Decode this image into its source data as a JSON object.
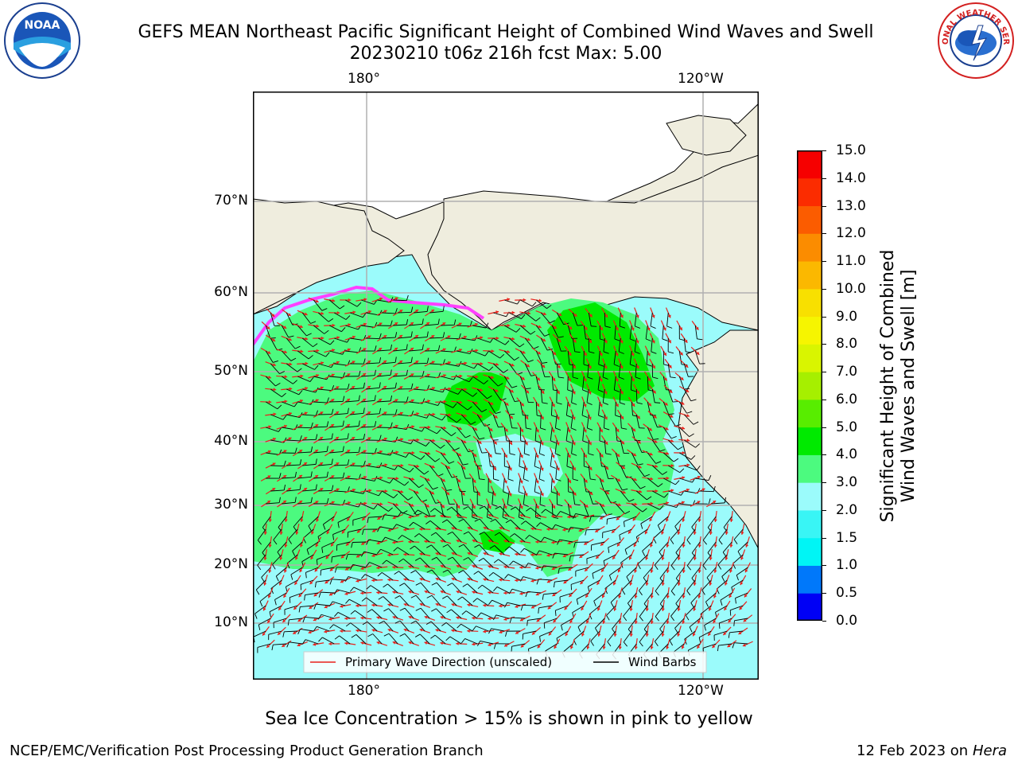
{
  "header": {
    "title_line1": "GEFS MEAN Northeast Pacific Significant Height of Combined Wind Waves and Swell",
    "title_line2": "20230210 t06z 216h fcst   Max: 5.00"
  },
  "logos": {
    "left_text": "NOAA",
    "right_text": "NATIONAL WEATHER SERVICE"
  },
  "map": {
    "top_lon_labels": [
      "180°",
      "120°W"
    ],
    "bottom_lon_labels": [
      "180°",
      "120°W"
    ],
    "lat_labels": [
      "70°N",
      "60°N",
      "50°N",
      "40°N",
      "30°N",
      "20°N",
      "10°N"
    ],
    "legend": {
      "wave_label": "Primary Wave Direction (unscaled)",
      "barb_label": "Wind Barbs"
    },
    "colors": {
      "land": "#efedde",
      "ocean_low": "#9bfbfb",
      "ocean_mid": "#4cfa7f",
      "ocean_high": "#00ea00",
      "wave_arrow": "#e8201a",
      "barb": "#000000"
    }
  },
  "colorbar": {
    "label_line1": "Significant Height of Combined",
    "label_line2": "Wind Waves and Swell [m]",
    "ticks": [
      "0.0",
      "0.5",
      "1.0",
      "1.5",
      "2.0",
      "3.0",
      "4.0",
      "5.0",
      "6.0",
      "7.0",
      "8.0",
      "9.0",
      "10.0",
      "11.0",
      "12.0",
      "13.0",
      "14.0",
      "15.0"
    ],
    "colors": [
      "#0000f5",
      "#0078fa",
      "#00f5f5",
      "#39f5f5",
      "#9bfbfb",
      "#4cfa7f",
      "#00ea00",
      "#58ed00",
      "#a6ef00",
      "#d9f500",
      "#f6f500",
      "#f8e000",
      "#fbb800",
      "#fb8c00",
      "#fb5c00",
      "#fb2c00",
      "#f60000"
    ]
  },
  "footer": {
    "ice_note": "Sea Ice Concentration > 15% is shown in pink to yellow",
    "left": "NCEP/EMC/Verification Post Processing Product Generation Branch",
    "date": "12 Feb 2023 on",
    "machine": "Hera"
  }
}
